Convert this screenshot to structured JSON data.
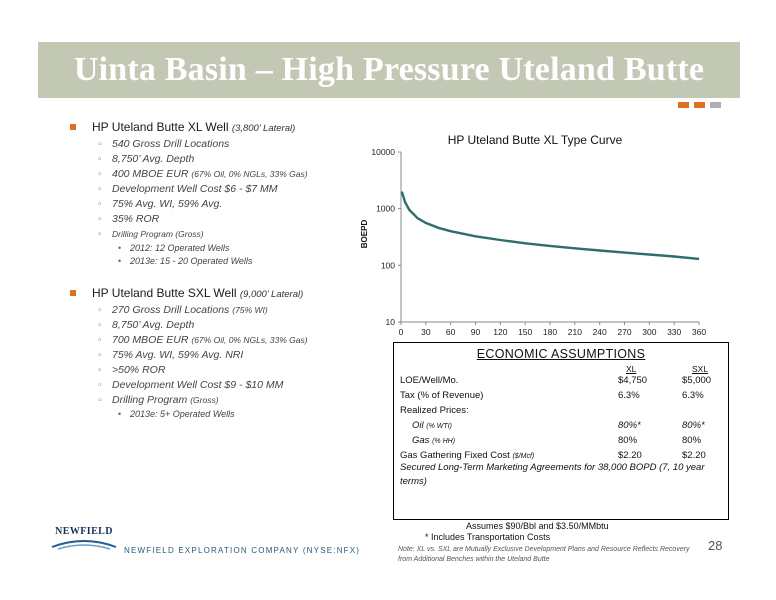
{
  "slide": {
    "title": "Uinta Basin – High Pressure Uteland Butte",
    "page_number": "28",
    "company_footer": "NEWFIELD EXPLORATION COMPANY (NYSE:NFX)",
    "logo_text": "NEWFIELD"
  },
  "colors": {
    "banner": "#c3c8b4",
    "accent_orange": "#e07020",
    "accent_grey": "#b0b0b0",
    "curve": "#2e6e6a",
    "bullet": "#e07020"
  },
  "xl": {
    "heading": "HP Uteland Butte XL Well",
    "heading_note": "(3,800’ Lateral)",
    "items": [
      "540 Gross Drill Locations",
      "8,750’ Avg. Depth",
      "400 MBOE EUR",
      "Development Well Cost $6 - $7 MM",
      "75% Avg. WI, 59% Avg.",
      "35% ROR",
      "Drilling Program (Gross)"
    ],
    "eur_note": "(67% Oil, 0% NGLs, 33% Gas)",
    "program": [
      "2012:   12 Operated Wells",
      "2013e: 15 - 20 Operated Wells"
    ]
  },
  "sxl": {
    "heading": "HP Uteland Butte SXL Well",
    "heading_note": "(9,000’ Lateral)",
    "items": [
      "270 Gross Drill Locations",
      "8,750’ Avg. Depth",
      "700 MBOE EUR",
      "75% Avg. WI, 59% Avg. NRI",
      ">50% ROR",
      "Development Well Cost $9 - $10 MM",
      "Drilling Program"
    ],
    "locations_note": "(75% WI)",
    "eur_note": "(67% Oil, 0% NGLs, 33% Gas)",
    "program_note": "(Gross)",
    "program": [
      "2013e: 5+ Operated Wells"
    ]
  },
  "chart_data": {
    "type": "line",
    "title": "HP Uteland Butte XL Type Curve",
    "xlabel": "",
    "ylabel": "BOEPD",
    "y_scale": "log",
    "xlim": [
      0,
      360
    ],
    "ylim": [
      10,
      10000
    ],
    "x_ticks": [
      "0",
      "30",
      "60",
      "90",
      "120",
      "150",
      "180",
      "210",
      "240",
      "270",
      "300",
      "330",
      "360"
    ],
    "y_ticks": [
      "10",
      "100",
      "1000",
      "10000"
    ],
    "grid": false,
    "series": [
      {
        "x": [
          1,
          5,
          10,
          20,
          30,
          45,
          60,
          90,
          120,
          150,
          180,
          210,
          240,
          270,
          300,
          330,
          360
        ],
        "values": [
          2000,
          1300,
          950,
          680,
          560,
          460,
          400,
          325,
          280,
          245,
          220,
          200,
          183,
          168,
          155,
          143,
          130
        ]
      }
    ]
  },
  "economics": {
    "title": "ECONOMIC ASSUMPTIONS",
    "col_xl": "XL",
    "col_sxl": "SXL",
    "rows": [
      {
        "label": "LOE/Well/Mo.",
        "xl": "$4,750",
        "sxl": "$5,000"
      },
      {
        "label": "Tax (% of Revenue)",
        "xl": "6.3%",
        "sxl": "6.3%"
      },
      {
        "label": "Realized Prices:",
        "xl": "",
        "sxl": ""
      },
      {
        "label": "Oil",
        "label_note": "(% WTI)",
        "xl": "80%*",
        "sxl": "80%*"
      },
      {
        "label": "Gas",
        "label_note": "(% HH)",
        "xl": "80%",
        "sxl": "80%"
      },
      {
        "label": "Gas Gathering Fixed Cost",
        "label_note": "($/Mcf)",
        "xl": "$2.20",
        "sxl": "$2.20"
      }
    ],
    "secured": "Secured Long-Term Marketing Agreements for 38,000 BOPD (7, 10 year terms)",
    "assumes": "Assumes $90/Bbl  and $3.50/MMbtu",
    "includes": "* Includes Transportation Costs",
    "footnote": "Note: XL vs. SXL are Mutually Exclusive Development Plans and Resource Reflects Recovery from Additional Benches within the Uteland Butte"
  }
}
